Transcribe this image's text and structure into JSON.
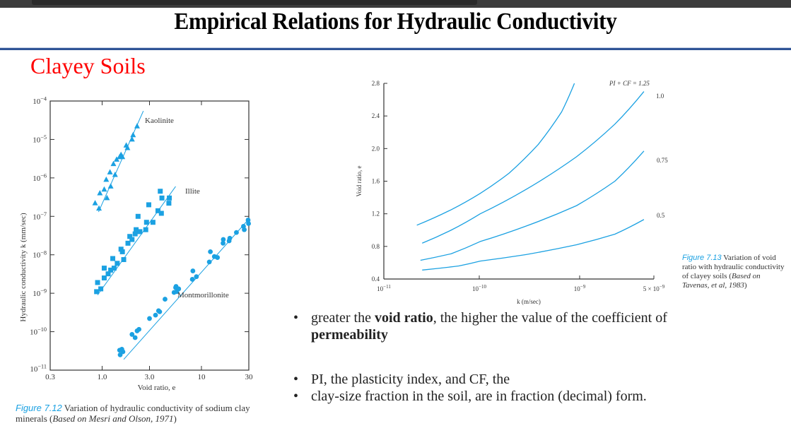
{
  "slide": {
    "title": "Empirical Relations for Hydraulic Conductivity",
    "subtitle": "Clayey Soils",
    "colors": {
      "subtitle": "#ff0000",
      "rule": "#2f5496",
      "series": "#1ba1e2",
      "figure_label": "#1ba1e2"
    },
    "bullets": [
      {
        "parts": [
          "greater the ",
          "void ratio",
          ", the higher the value of the coefficient of ",
          "permeability"
        ]
      },
      {
        "text": "PI, the plasticity index, and CF, the"
      },
      {
        "text": "clay-size fraction in the soil, are in fraction (decimal) form."
      }
    ],
    "bullet_glyph": "•"
  },
  "figure_left": {
    "label": "Figure 7.12",
    "caption": " Variation of hydraulic conductivity of sodium clay minerals (",
    "source": "Based on Mesri and Olson, 1971",
    "caption_end": ")"
  },
  "figure_right": {
    "label": "Figure 7.13",
    "caption": " Variation of void ratio with hydraulic conductivity of clayey soils (",
    "source": "Based on Tavenas, et al, 1983",
    "caption_end": ")"
  },
  "chart_data": [
    {
      "type": "scatter",
      "title": "Variation of hydraulic conductivity of sodium clay minerals",
      "xlabel": "Void ratio, e",
      "ylabel": "Hydraulic conductivity k (mm/sec)",
      "xscale": "log",
      "yscale": "log",
      "xlim": [
        0.3,
        30
      ],
      "ylim": [
        1e-11,
        0.0001
      ],
      "xticks": [
        "0.3",
        "1.0",
        "3.0",
        "10",
        "30"
      ],
      "yticks": [
        "10−11",
        "10−10",
        "10−9",
        "10−8",
        "10−7",
        "10−6",
        "10−5",
        "10−4"
      ],
      "grid": false,
      "series": [
        {
          "name": "Kaolinite",
          "marker": "triangle",
          "points": [
            [
              0.85,
              2.2e-07
            ],
            [
              0.93,
              1.6e-07
            ],
            [
              0.95,
              4e-07
            ],
            [
              1.05,
              5e-07
            ],
            [
              1.1,
              9e-07
            ],
            [
              1.12,
              3e-07
            ],
            [
              1.2,
              1.4e-06
            ],
            [
              1.22,
              6e-07
            ],
            [
              1.3,
              2.3e-06
            ],
            [
              1.35,
              1.2e-06
            ],
            [
              1.4,
              3e-06
            ],
            [
              1.5,
              3.5e-06
            ],
            [
              1.55,
              4e-06
            ],
            [
              1.6,
              3.5e-06
            ],
            [
              1.75,
              7e-06
            ],
            [
              1.8,
              6e-06
            ],
            [
              2.0,
              1e-05
            ],
            [
              2.05,
              1.3e-05
            ],
            [
              2.25,
              2.2e-05
            ]
          ],
          "fit": [
            [
              0.92,
              1.3e-07
            ],
            [
              2.6,
              5.5e-05
            ]
          ]
        },
        {
          "name": "Illite",
          "marker": "square",
          "points": [
            [
              0.88,
              1.1e-09
            ],
            [
              0.9,
              1.9e-09
            ],
            [
              0.97,
              1.3e-09
            ],
            [
              1.05,
              2.5e-09
            ],
            [
              1.05,
              4.5e-09
            ],
            [
              1.15,
              3.2e-09
            ],
            [
              1.22,
              4e-09
            ],
            [
              1.28,
              8e-09
            ],
            [
              1.32,
              4.5e-09
            ],
            [
              1.42,
              6e-09
            ],
            [
              1.55,
              1.4e-08
            ],
            [
              1.6,
              1.2e-08
            ],
            [
              1.65,
              7.5e-09
            ],
            [
              1.82,
              2e-08
            ],
            [
              1.9,
              3e-08
            ],
            [
              2.0,
              2.5e-08
            ],
            [
              2.15,
              3.5e-08
            ],
            [
              2.2,
              4.5e-08
            ],
            [
              2.3,
              1e-07
            ],
            [
              2.4,
              4e-08
            ],
            [
              2.75,
              4.5e-08
            ],
            [
              2.8,
              7e-08
            ],
            [
              2.95,
              2e-07
            ],
            [
              3.25,
              7e-08
            ],
            [
              3.65,
              1.4e-07
            ],
            [
              3.85,
              4.5e-07
            ],
            [
              3.95,
              1.2e-07
            ],
            [
              4.0,
              3e-07
            ],
            [
              4.7,
              2.2e-07
            ],
            [
              4.75,
              3e-07
            ]
          ],
          "fit": [
            [
              0.9,
              9e-10
            ],
            [
              5.5,
              6e-07
            ]
          ]
        },
        {
          "name": "Montmorillonite",
          "marker": "circle",
          "points": [
            [
              1.5,
              3.3e-11
            ],
            [
              1.52,
              2.5e-11
            ],
            [
              1.58,
              3.5e-11
            ],
            [
              1.62,
              3e-11
            ],
            [
              2.0,
              8.5e-11
            ],
            [
              2.15,
              7e-11
            ],
            [
              2.25,
              1.05e-10
            ],
            [
              2.35,
              1.15e-10
            ],
            [
              3.0,
              2.2e-10
            ],
            [
              3.45,
              2.7e-10
            ],
            [
              3.7,
              3.5e-10
            ],
            [
              3.8,
              3.3e-10
            ],
            [
              4.3,
              7e-10
            ],
            [
              5.3,
              1.05e-09
            ],
            [
              5.5,
              1.4e-09
            ],
            [
              5.55,
              1.5e-09
            ],
            [
              5.65,
              1.1e-09
            ],
            [
              5.9,
              1.3e-09
            ],
            [
              8.1,
              2.3e-09
            ],
            [
              8.2,
              3.8e-09
            ],
            [
              8.9,
              2.7e-09
            ],
            [
              12.0,
              6.5e-09
            ],
            [
              12.3,
              1.2e-08
            ],
            [
              13.5,
              9e-09
            ],
            [
              14.5,
              8.5e-09
            ],
            [
              16.5,
              2e-08
            ],
            [
              16.6,
              2.5e-08
            ],
            [
              19.0,
              2.3e-08
            ],
            [
              19.3,
              2.7e-08
            ],
            [
              22.5,
              3.8e-08
            ],
            [
              26.5,
              5.5e-08
            ],
            [
              27.0,
              4.5e-08
            ],
            [
              29.5,
              8e-08
            ],
            [
              29.8,
              6.5e-08
            ]
          ],
          "fit": [
            [
              1.65,
              1.9e-11
            ],
            [
              30,
              8.5e-08
            ]
          ]
        }
      ],
      "annotations": [
        "Kaolinite",
        "Illite",
        "Montmorillonite"
      ]
    },
    {
      "type": "line",
      "title": "Variation of void ratio with hydraulic conductivity of clayey soils",
      "xlabel": "k (m/sec)",
      "ylabel": "Void ratio, e",
      "xscale": "log",
      "xlim": [
        1e-11,
        5e-09
      ],
      "ylim": [
        0.4,
        2.8
      ],
      "xticks": [
        "10−11",
        "10−10",
        "10−9",
        "5 × 10−9"
      ],
      "yticks": [
        "0.4",
        "0.8",
        "1.2",
        "1.6",
        "2.0",
        "2.4",
        "2.8"
      ],
      "grid": false,
      "series": [
        {
          "name": "PI + CF = 1.25",
          "label": "PI + CF = 1.25",
          "points": [
            [
              2.2e-11,
              1.06
            ],
            [
              5e-11,
              1.25
            ],
            [
              1e-10,
              1.45
            ],
            [
              2e-10,
              1.7
            ],
            [
              4e-10,
              2.05
            ],
            [
              7e-10,
              2.45
            ],
            [
              9.5e-10,
              2.8
            ]
          ]
        },
        {
          "name": "1.0",
          "label": "1.0",
          "points": [
            [
              2.5e-11,
              0.84
            ],
            [
              5e-11,
              1.0
            ],
            [
              1e-10,
              1.2
            ],
            [
              3e-10,
              1.5
            ],
            [
              1e-09,
              1.9
            ],
            [
              2.5e-09,
              2.3
            ],
            [
              5e-09,
              2.7
            ]
          ]
        },
        {
          "name": "0.75",
          "label": "0.75",
          "points": [
            [
              2.4e-11,
              0.63
            ],
            [
              5e-11,
              0.71
            ],
            [
              1e-10,
              0.86
            ],
            [
              3e-10,
              1.05
            ],
            [
              1e-09,
              1.3
            ],
            [
              2.5e-09,
              1.6
            ],
            [
              5e-09,
              1.97
            ]
          ]
        },
        {
          "name": "0.5",
          "label": "0.5",
          "points": [
            [
              2.5e-11,
              0.51
            ],
            [
              6e-11,
              0.56
            ],
            [
              1e-10,
              0.62
            ],
            [
              3e-10,
              0.7
            ],
            [
              1e-09,
              0.82
            ],
            [
              2.5e-09,
              0.95
            ],
            [
              5e-09,
              1.13
            ]
          ]
        }
      ]
    }
  ]
}
